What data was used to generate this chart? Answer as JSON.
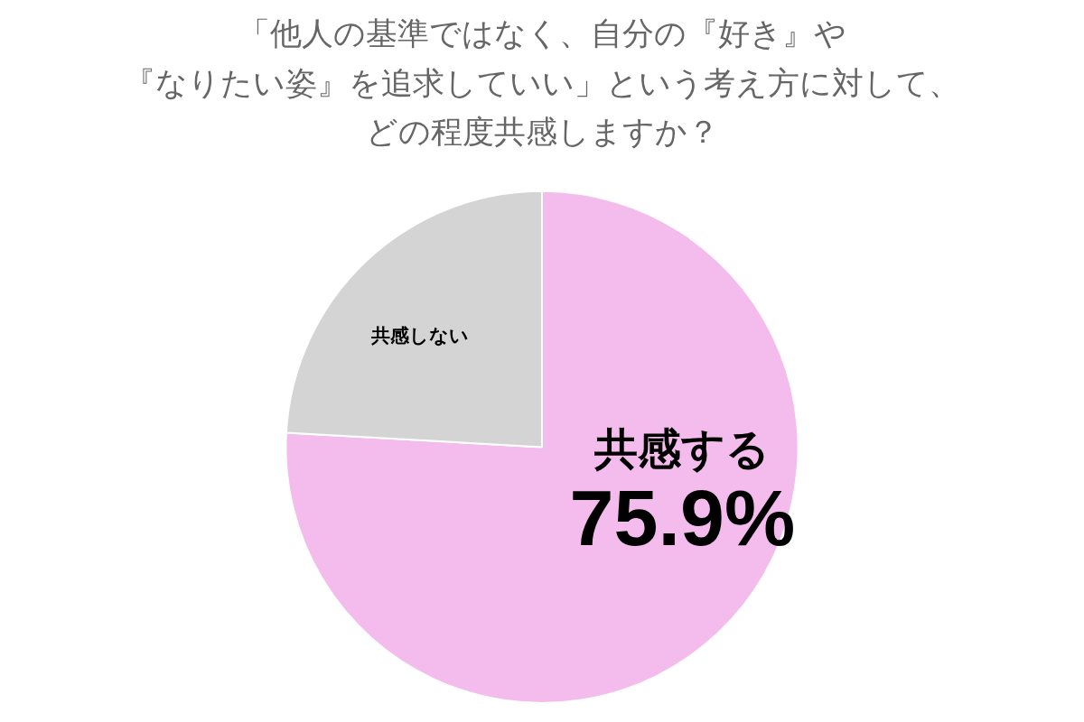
{
  "chart_data": {
    "type": "pie",
    "title": "「他人の基準ではなく、自分の『好き』や『なりたい姿』を追求していい」という考え方に対して、どの程度共感しますか？",
    "categories": [
      "共感する",
      "共感しない"
    ],
    "values": [
      75.9,
      24.1
    ],
    "colors": [
      "#f4bced",
      "#d4d4d4"
    ],
    "value_labels": [
      "75.9%",
      null
    ],
    "legend": false
  }
}
